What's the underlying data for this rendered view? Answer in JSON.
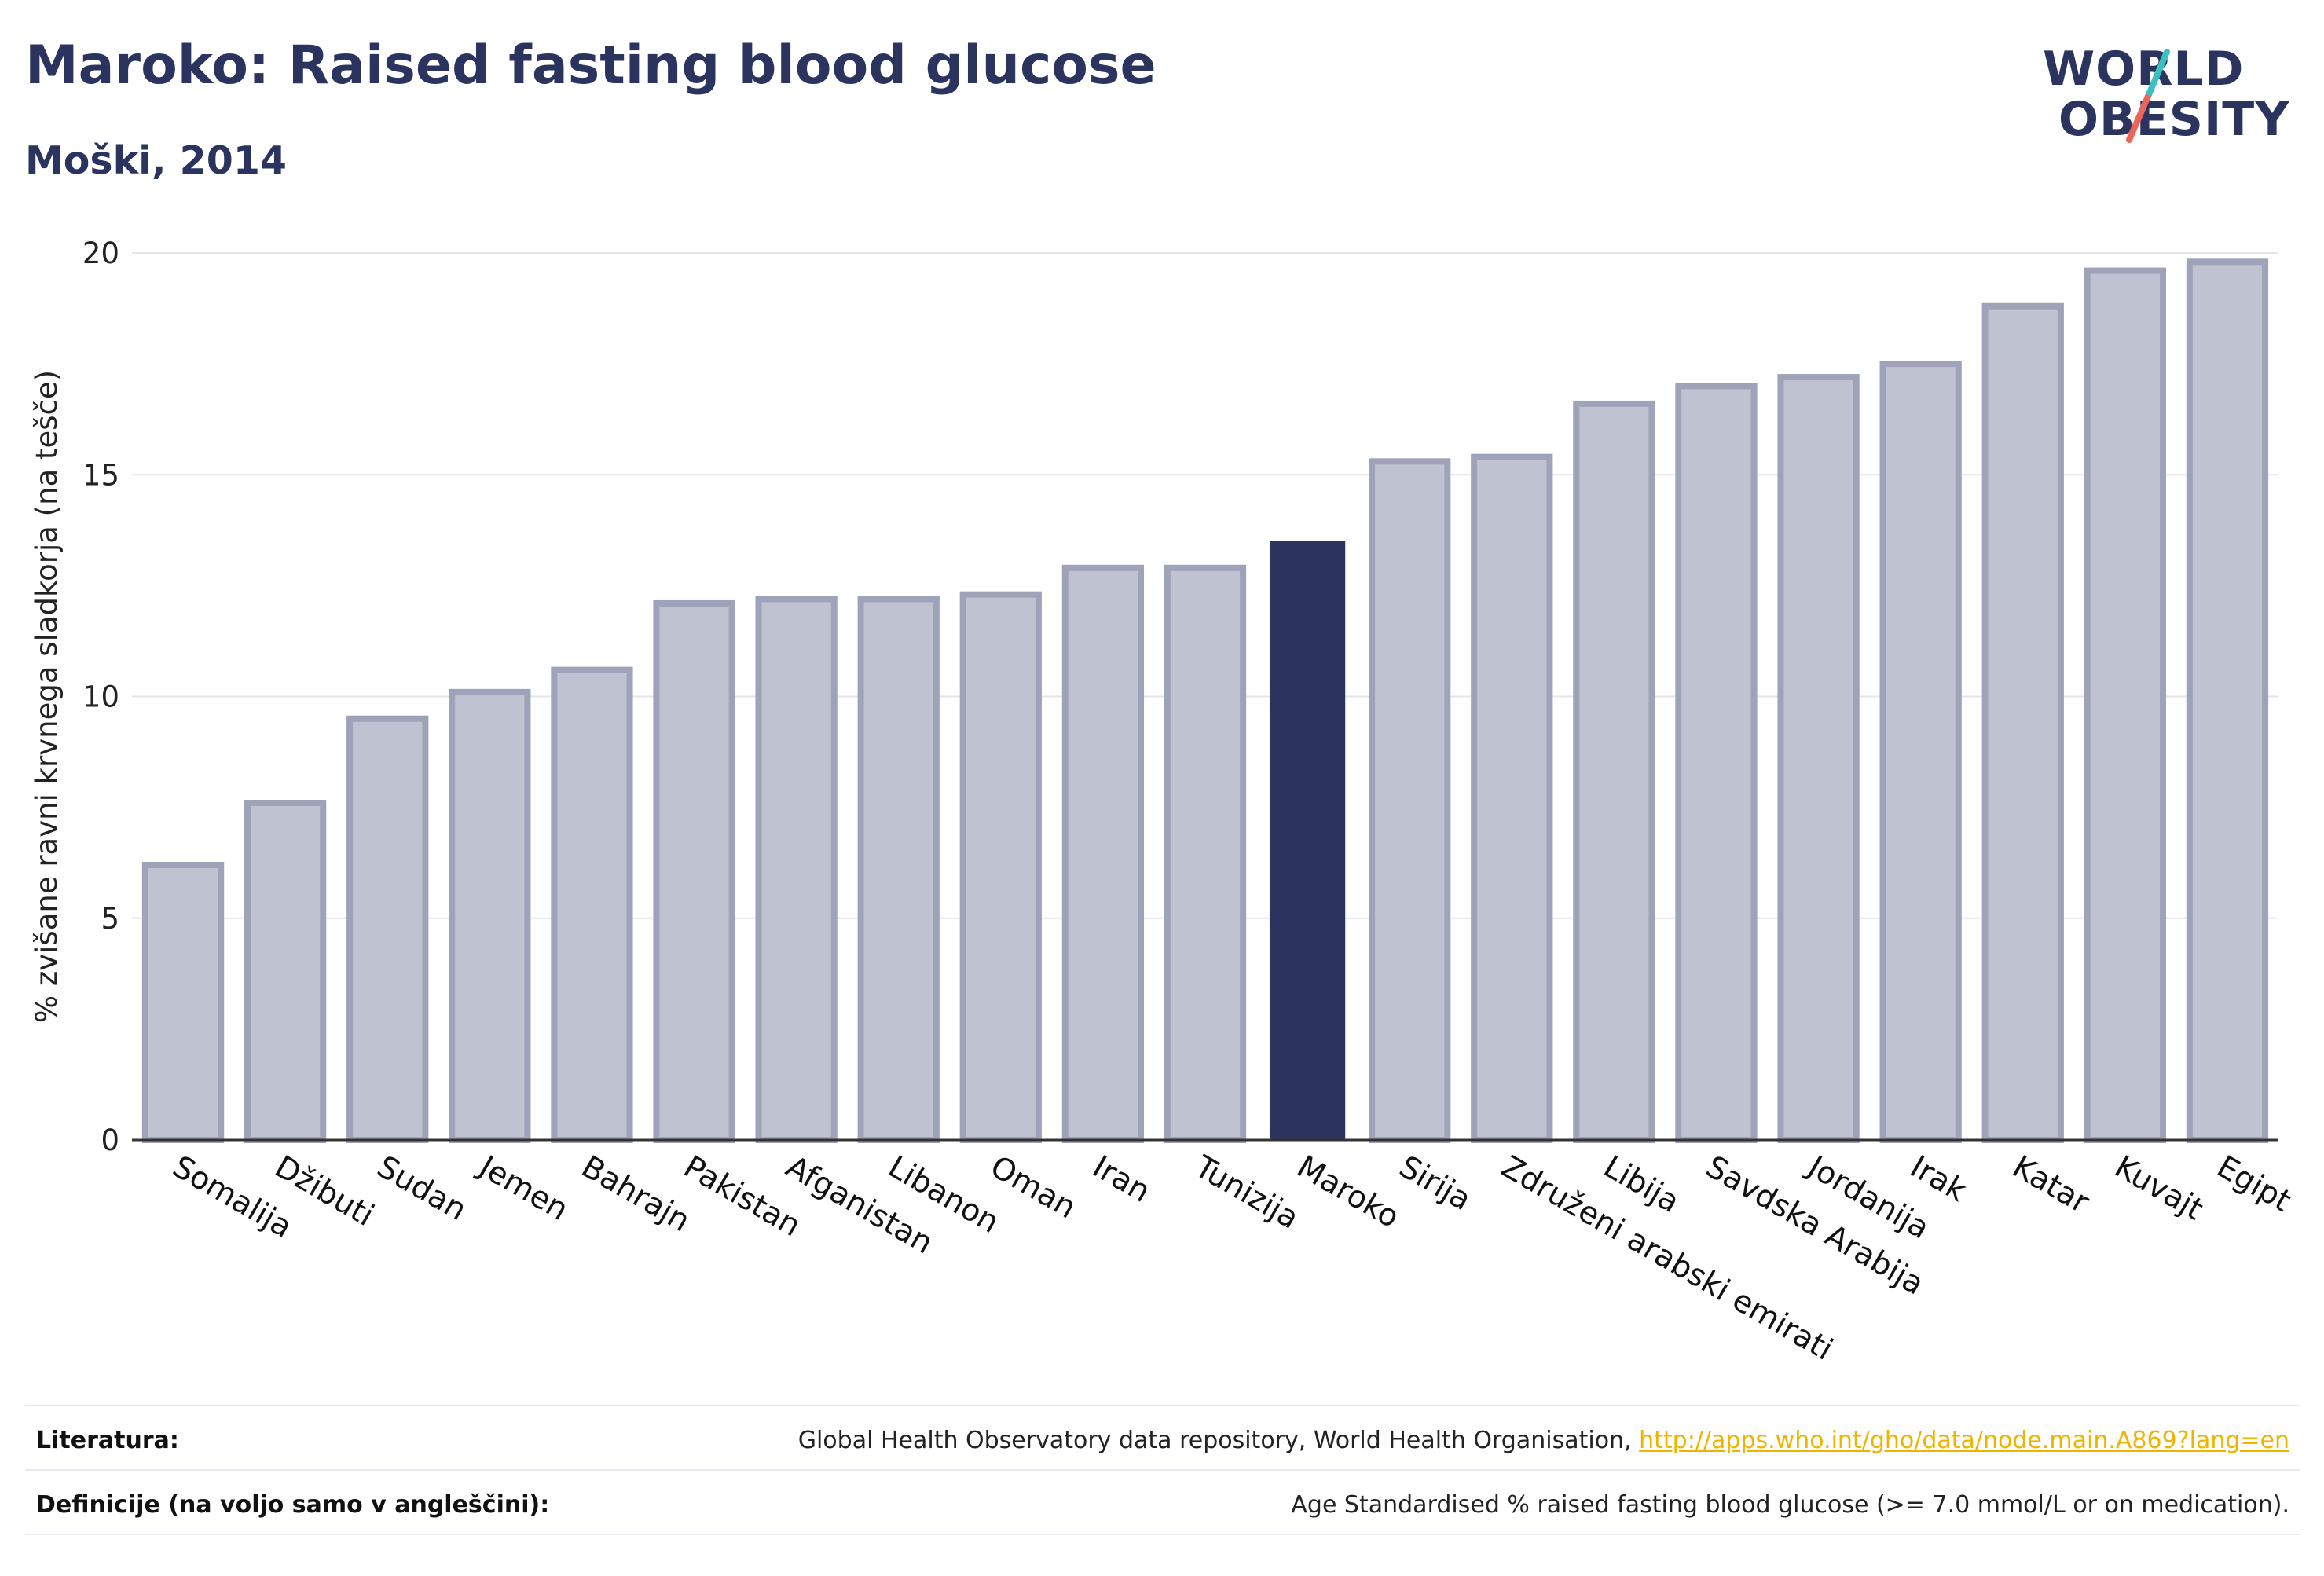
{
  "header": {
    "title": "Maroko: Raised fasting blood glucose",
    "subtitle": "Moški, 2014"
  },
  "logo": {
    "line1": "WORLD",
    "line2": "OBESITY",
    "accent_teal": "#3cc1c0",
    "accent_red": "#e8675a"
  },
  "colors": {
    "highlight": "#2b345f",
    "bar_fill": "#bfc2d0",
    "bar_stroke": "#9ea3ba",
    "grid": "#e6e6ea",
    "text": "#2b345f"
  },
  "chart_data": {
    "type": "bar",
    "title": "Maroko: Raised fasting blood glucose",
    "subtitle": "Moški, 2014",
    "xlabel": "",
    "ylabel": "% zvišane ravni krvnega sladkorja (na tešče)",
    "ylim": [
      0,
      20
    ],
    "yticks": [
      0,
      5,
      10,
      15,
      20
    ],
    "grid": true,
    "highlight_category": "Maroko",
    "categories": [
      "Somalija",
      "Džibuti",
      "Sudan",
      "Jemen",
      "Bahrajn",
      "Pakistan",
      "Afganistan",
      "Libanon",
      "Oman",
      "Iran",
      "Tunizija",
      "Maroko",
      "Sirija",
      "Združeni arabski emirati",
      "Libija",
      "Savdska Arabija",
      "Jordanija",
      "Irak",
      "Katar",
      "Kuvajt",
      "Egipt"
    ],
    "values": [
      6.2,
      7.6,
      9.5,
      10.1,
      10.6,
      12.1,
      12.2,
      12.2,
      12.3,
      12.9,
      12.9,
      13.5,
      15.3,
      15.4,
      16.6,
      17.0,
      17.2,
      17.5,
      18.8,
      19.6,
      19.8
    ]
  },
  "footer": {
    "literature_label": "Literatura:",
    "literature_text": "Global Health Observatory data repository, World Health Organisation, ",
    "literature_link": "http://apps.who.int/gho/data/node.main.A869?lang=en",
    "definitions_label": "Definicije (na voljo samo v angleščini):",
    "definitions_text": "Age Standardised % raised fasting blood glucose (>= 7.0 mmol/L or on medication)."
  }
}
